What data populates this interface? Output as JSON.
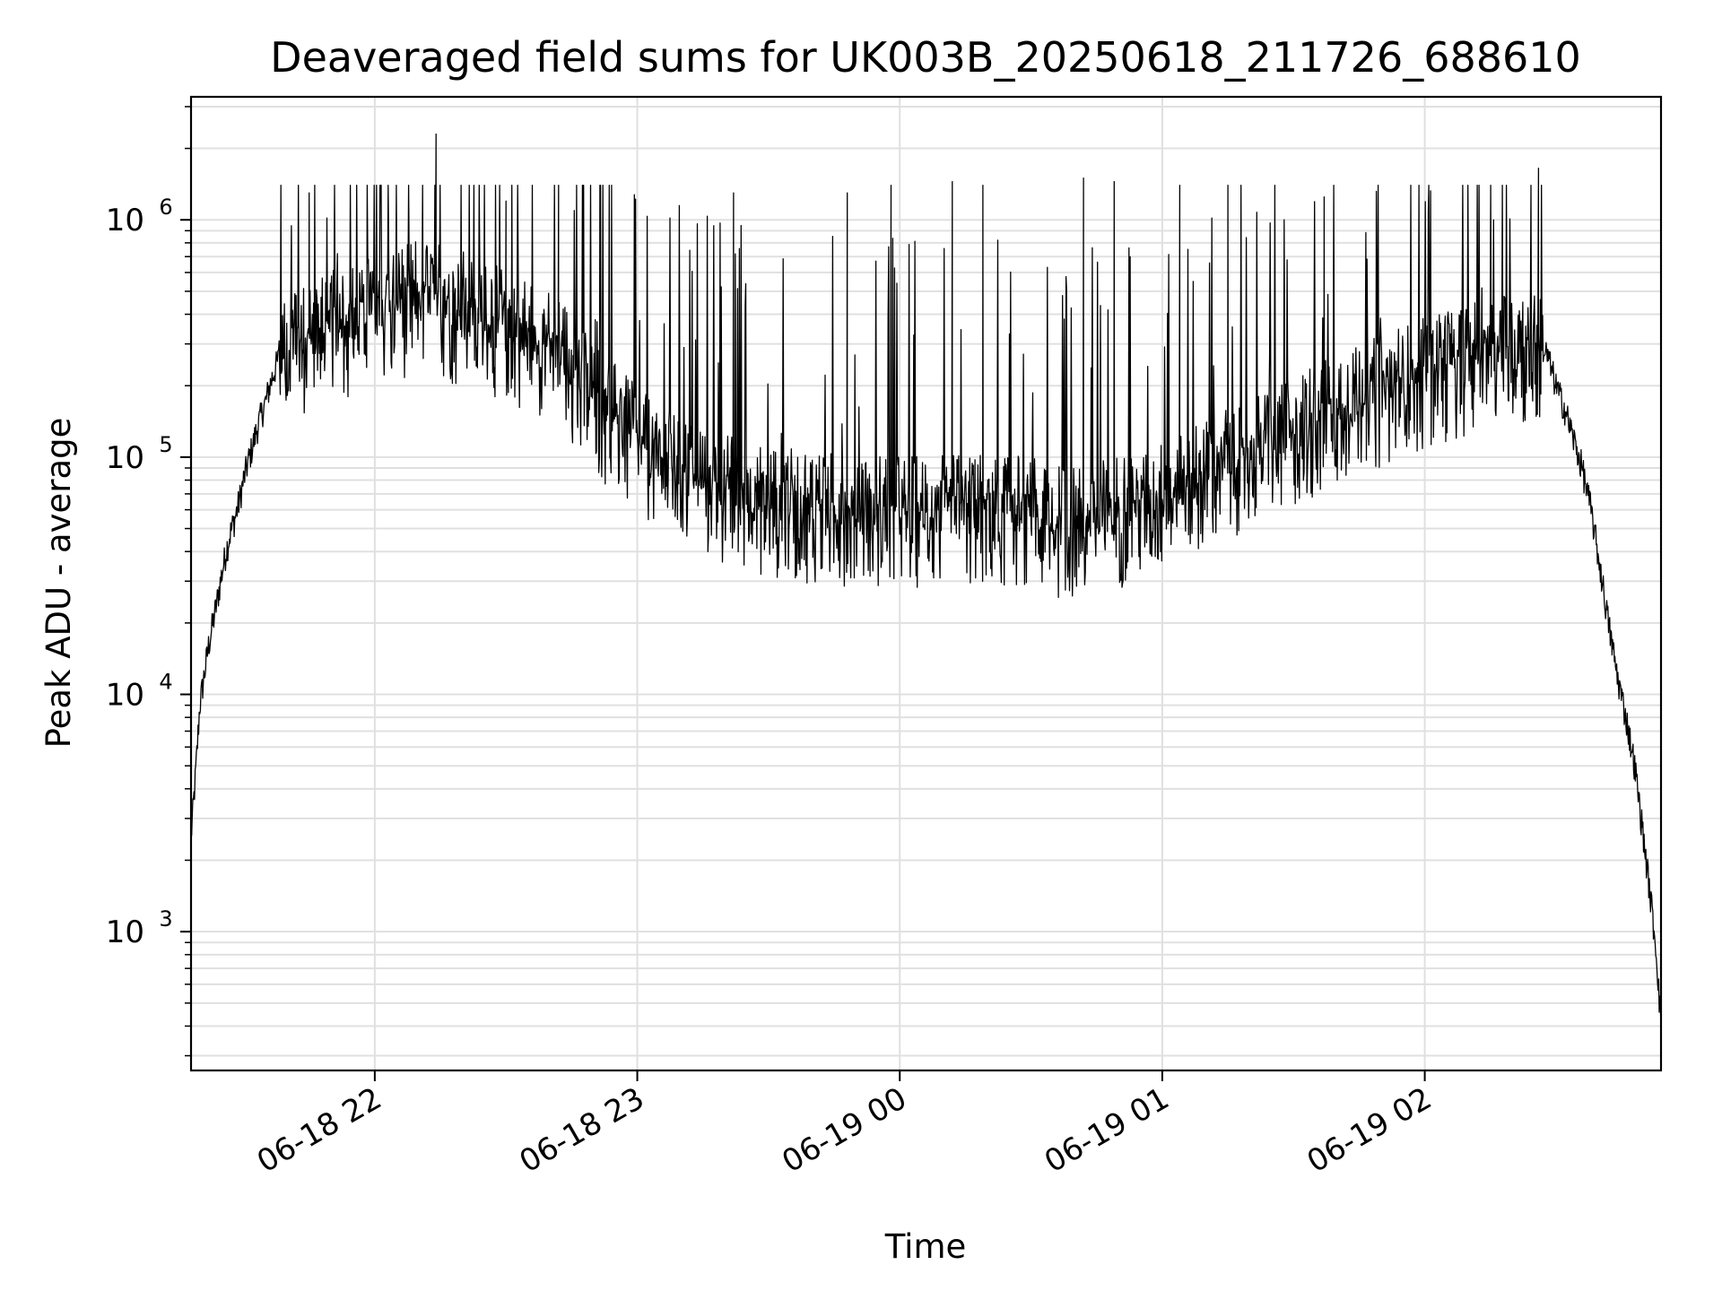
{
  "chart_data": {
    "type": "line",
    "title": "Deaveraged field sums for UK003B_20250618_211726_688610",
    "xlabel": "Time",
    "ylabel": "Peak ADU - average",
    "yscale": "log",
    "ylim": [
      260,
      3300000
    ],
    "xlim": [
      "2025-06-18 21:18",
      "2025-06-19 02:54"
    ],
    "grid": true,
    "colors": {
      "line": "#000000",
      "grid": "#e0e0e0",
      "axes": "#000000"
    },
    "xticks": [
      {
        "value": "2025-06-18 22:00",
        "label": "06-18 22"
      },
      {
        "value": "2025-06-18 23:00",
        "label": "06-18 23"
      },
      {
        "value": "2025-06-19 00:00",
        "label": "06-19 00"
      },
      {
        "value": "2025-06-19 01:00",
        "label": "06-19 01"
      },
      {
        "value": "2025-06-19 02:00",
        "label": "06-19 02"
      }
    ],
    "yticks": [
      {
        "value": 1000,
        "base": "10",
        "exp": "3"
      },
      {
        "value": 10000,
        "base": "10",
        "exp": "4"
      },
      {
        "value": 100000,
        "base": "10",
        "exp": "5"
      },
      {
        "value": 1000000,
        "base": "10",
        "exp": "6"
      }
    ],
    "series": [
      {
        "points": [
          [
            "2025-06-18 21:18",
            2500
          ],
          [
            "2025-06-18 21:19",
            4500
          ],
          [
            "2025-06-18 21:20",
            9000
          ],
          [
            "2025-06-18 21:21",
            12000
          ],
          [
            "2025-06-18 21:22",
            16000
          ],
          [
            "2025-06-18 21:23",
            20000
          ],
          [
            "2025-06-18 21:24",
            25000
          ],
          [
            "2025-06-18 21:25",
            32000
          ],
          [
            "2025-06-18 21:26",
            40000
          ],
          [
            "2025-06-18 21:27",
            48000
          ],
          [
            "2025-06-18 21:28",
            55000
          ],
          [
            "2025-06-18 21:29",
            65000
          ],
          [
            "2025-06-18 21:30",
            80000
          ],
          [
            "2025-06-18 21:31",
            95000
          ],
          [
            "2025-06-18 21:32",
            110000
          ],
          [
            "2025-06-18 21:33",
            130000
          ],
          [
            "2025-06-18 21:34",
            150000
          ],
          [
            "2025-06-18 21:35",
            170000
          ],
          [
            "2025-06-18 21:36",
            200000
          ],
          [
            "2025-06-18 21:37",
            230000
          ],
          [
            "2025-06-18 21:38",
            260000
          ],
          [
            "2025-06-18 21:40",
            290000
          ],
          [
            "2025-06-18 21:42",
            310000
          ],
          [
            "2025-06-18 21:44",
            330000
          ],
          [
            "2025-06-18 21:46",
            340000
          ],
          [
            "2025-06-18 21:48",
            350000
          ],
          [
            "2025-06-18 21:50",
            370000
          ],
          [
            "2025-06-18 21:52",
            380000
          ],
          [
            "2025-06-18 21:54",
            390000
          ],
          [
            "2025-06-18 21:56",
            400000
          ],
          [
            "2025-06-18 21:58",
            420000
          ],
          [
            "2025-06-18 22:00",
            430000
          ],
          [
            "2025-06-18 22:05",
            460000
          ],
          [
            "2025-06-18 22:10",
            500000
          ],
          [
            "2025-06-18 22:15",
            480000
          ],
          [
            "2025-06-18 22:20",
            420000
          ],
          [
            "2025-06-18 22:25",
            400000
          ],
          [
            "2025-06-18 22:30",
            380000
          ],
          [
            "2025-06-18 22:35",
            340000
          ],
          [
            "2025-06-18 22:40",
            300000
          ],
          [
            "2025-06-18 22:45",
            250000
          ],
          [
            "2025-06-18 22:50",
            190000
          ],
          [
            "2025-06-18 22:55",
            150000
          ],
          [
            "2025-06-18 23:00",
            120000
          ],
          [
            "2025-06-18 23:05",
            100000
          ],
          [
            "2025-06-18 23:10",
            90000
          ],
          [
            "2025-06-18 23:15",
            82000
          ],
          [
            "2025-06-18 23:20",
            76000
          ],
          [
            "2025-06-18 23:25",
            72000
          ],
          [
            "2025-06-18 23:30",
            68000
          ],
          [
            "2025-06-18 23:40",
            65000
          ],
          [
            "2025-06-18 23:50",
            63000
          ],
          [
            "2025-06-19 00:00",
            62000
          ],
          [
            "2025-06-19 00:10",
            62000
          ],
          [
            "2025-06-19 00:20",
            63000
          ],
          [
            "2025-06-19 00:30",
            62000
          ],
          [
            "2025-06-19 00:35",
            56000
          ],
          [
            "2025-06-19 00:40",
            55000
          ],
          [
            "2025-06-19 00:45",
            58000
          ],
          [
            "2025-06-19 00:50",
            62000
          ],
          [
            "2025-06-19 00:55",
            66000
          ],
          [
            "2025-06-19 01:00",
            70000
          ],
          [
            "2025-06-19 01:05",
            78000
          ],
          [
            "2025-06-19 01:10",
            88000
          ],
          [
            "2025-06-19 01:15",
            100000
          ],
          [
            "2025-06-19 01:20",
            110000
          ],
          [
            "2025-06-19 01:25",
            120000
          ],
          [
            "2025-06-19 01:30",
            135000
          ],
          [
            "2025-06-19 01:35",
            150000
          ],
          [
            "2025-06-19 01:40",
            165000
          ],
          [
            "2025-06-19 01:45",
            180000
          ],
          [
            "2025-06-19 01:50",
            200000
          ],
          [
            "2025-06-19 01:55",
            215000
          ],
          [
            "2025-06-19 02:00",
            235000
          ],
          [
            "2025-06-19 02:05",
            255000
          ],
          [
            "2025-06-19 02:10",
            275000
          ],
          [
            "2025-06-19 02:15",
            290000
          ],
          [
            "2025-06-19 02:20",
            300000
          ],
          [
            "2025-06-19 02:25",
            300000
          ],
          [
            "2025-06-19 02:28",
            270000
          ],
          [
            "2025-06-19 02:30",
            200000
          ],
          [
            "2025-06-19 02:32",
            160000
          ],
          [
            "2025-06-19 02:34",
            120000
          ],
          [
            "2025-06-19 02:36",
            90000
          ],
          [
            "2025-06-19 02:38",
            60000
          ],
          [
            "2025-06-19 02:40",
            35000
          ],
          [
            "2025-06-19 02:42",
            20000
          ],
          [
            "2025-06-19 02:44",
            12000
          ],
          [
            "2025-06-19 02:46",
            8000
          ],
          [
            "2025-06-19 02:48",
            5000
          ],
          [
            "2025-06-19 02:50",
            2500
          ],
          [
            "2025-06-19 02:52",
            1200
          ],
          [
            "2025-06-19 02:53",
            800
          ],
          [
            "2025-06-19 02:54",
            400
          ]
        ]
      }
    ],
    "spikes": [
      [
        "2025-06-18 21:45",
        1300000
      ],
      [
        "2025-06-18 22:14",
        2300000
      ],
      [
        "2025-06-18 22:30",
        1200000
      ],
      [
        "2025-06-18 22:42",
        1400000
      ],
      [
        "2025-06-18 23:22",
        1300000
      ],
      [
        "2025-06-18 23:48",
        1300000
      ],
      [
        "2025-06-18 23:58",
        1400000
      ],
      [
        "2025-06-19 00:12",
        1450000
      ],
      [
        "2025-06-19 00:19",
        1400000
      ],
      [
        "2025-06-19 00:42",
        1500000
      ],
      [
        "2025-06-19 00:49",
        1450000
      ],
      [
        "2025-06-19 01:04",
        1400000
      ],
      [
        "2025-06-19 01:15",
        1400000
      ],
      [
        "2025-06-19 01:37",
        1250000
      ],
      [
        "2025-06-19 02:26",
        1650000
      ]
    ],
    "noise": {
      "start": "2025-06-18 21:38",
      "end": "2025-06-19 02:27",
      "upper_factor": 3.0,
      "lower_factor": 0.45
    }
  }
}
